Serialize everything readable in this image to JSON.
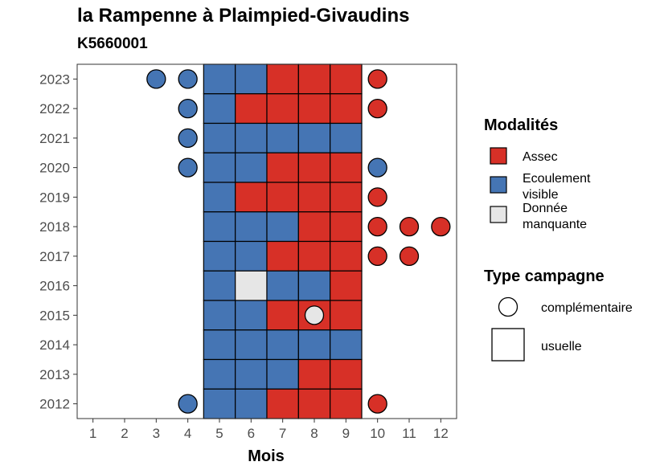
{
  "chart_data": {
    "type": "heatmap",
    "title": "la Rampenne à Plaimpied-Givaudins",
    "subtitle": "K5660001",
    "xlabel": "Mois",
    "ylabel": "",
    "x_ticks": [
      1,
      2,
      3,
      4,
      5,
      6,
      7,
      8,
      9,
      10,
      11,
      12
    ],
    "y_ticks": [
      2012,
      2013,
      2014,
      2015,
      2016,
      2017,
      2018,
      2019,
      2020,
      2021,
      2022,
      2023
    ],
    "xlim": [
      0.5,
      12.5
    ],
    "ylim": [
      2011.5,
      2023.5
    ],
    "usual_months_band": [
      5,
      9
    ],
    "colors": {
      "Assec": "#d73027",
      "Ecoulement visible": "#4575b4",
      "Donnée manquante": "#e6e6e6"
    },
    "legend": {
      "modalites_title": "Modalités",
      "modalites": [
        {
          "key": "Assec",
          "label_lines": [
            "Assec"
          ]
        },
        {
          "key": "Ecoulement visible",
          "label_lines": [
            "Ecoulement",
            "visible"
          ]
        },
        {
          "key": "Donnée manquante",
          "label_lines": [
            "Donnée",
            "manquante"
          ]
        }
      ],
      "type_title": "Type campagne",
      "types": [
        {
          "shape": "circle",
          "label": "complémentaire"
        },
        {
          "shape": "square",
          "label": "usuelle"
        }
      ],
      "position": "right"
    },
    "usuelle": [
      {
        "year": 2023,
        "values": {
          "5": "Ecoulement visible",
          "6": "Ecoulement visible",
          "7": "Assec",
          "8": "Assec",
          "9": "Assec"
        }
      },
      {
        "year": 2022,
        "values": {
          "5": "Ecoulement visible",
          "6": "Assec",
          "7": "Assec",
          "8": "Assec",
          "9": "Assec"
        }
      },
      {
        "year": 2021,
        "values": {
          "5": "Ecoulement visible",
          "6": "Ecoulement visible",
          "7": "Ecoulement visible",
          "8": "Ecoulement visible",
          "9": "Ecoulement visible"
        }
      },
      {
        "year": 2020,
        "values": {
          "5": "Ecoulement visible",
          "6": "Ecoulement visible",
          "7": "Assec",
          "8": "Assec",
          "9": "Assec"
        }
      },
      {
        "year": 2019,
        "values": {
          "5": "Ecoulement visible",
          "6": "Assec",
          "7": "Assec",
          "8": "Assec",
          "9": "Assec"
        }
      },
      {
        "year": 2018,
        "values": {
          "5": "Ecoulement visible",
          "6": "Ecoulement visible",
          "7": "Ecoulement visible",
          "8": "Assec",
          "9": "Assec"
        }
      },
      {
        "year": 2017,
        "values": {
          "5": "Ecoulement visible",
          "6": "Ecoulement visible",
          "7": "Assec",
          "8": "Assec",
          "9": "Assec"
        }
      },
      {
        "year": 2016,
        "values": {
          "5": "Ecoulement visible",
          "6": "Donnée manquante",
          "7": "Ecoulement visible",
          "8": "Ecoulement visible",
          "9": "Assec"
        }
      },
      {
        "year": 2015,
        "values": {
          "5": "Ecoulement visible",
          "6": "Ecoulement visible",
          "7": "Assec",
          "8": "Assec",
          "9": "Assec"
        }
      },
      {
        "year": 2014,
        "values": {
          "5": "Ecoulement visible",
          "6": "Ecoulement visible",
          "7": "Ecoulement visible",
          "8": "Ecoulement visible",
          "9": "Ecoulement visible"
        }
      },
      {
        "year": 2013,
        "values": {
          "5": "Ecoulement visible",
          "6": "Ecoulement visible",
          "7": "Ecoulement visible",
          "8": "Assec",
          "9": "Assec"
        }
      },
      {
        "year": 2012,
        "values": {
          "5": "Ecoulement visible",
          "6": "Ecoulement visible",
          "7": "Assec",
          "8": "Assec",
          "9": "Assec"
        }
      }
    ],
    "complementaire": [
      {
        "year": 2023,
        "month": 3,
        "value": "Ecoulement visible"
      },
      {
        "year": 2023,
        "month": 4,
        "value": "Ecoulement visible"
      },
      {
        "year": 2023,
        "month": 10,
        "value": "Assec"
      },
      {
        "year": 2022,
        "month": 4,
        "value": "Ecoulement visible"
      },
      {
        "year": 2022,
        "month": 10,
        "value": "Assec"
      },
      {
        "year": 2021,
        "month": 4,
        "value": "Ecoulement visible"
      },
      {
        "year": 2020,
        "month": 4,
        "value": "Ecoulement visible"
      },
      {
        "year": 2020,
        "month": 10,
        "value": "Ecoulement visible"
      },
      {
        "year": 2019,
        "month": 10,
        "value": "Assec"
      },
      {
        "year": 2018,
        "month": 10,
        "value": "Assec"
      },
      {
        "year": 2018,
        "month": 11,
        "value": "Assec"
      },
      {
        "year": 2018,
        "month": 12,
        "value": "Assec"
      },
      {
        "year": 2017,
        "month": 10,
        "value": "Assec"
      },
      {
        "year": 2017,
        "month": 11,
        "value": "Assec"
      },
      {
        "year": 2015,
        "month": 8,
        "value": "Donnée manquante"
      },
      {
        "year": 2012,
        "month": 4,
        "value": "Ecoulement visible"
      },
      {
        "year": 2012,
        "month": 10,
        "value": "Assec"
      }
    ]
  }
}
